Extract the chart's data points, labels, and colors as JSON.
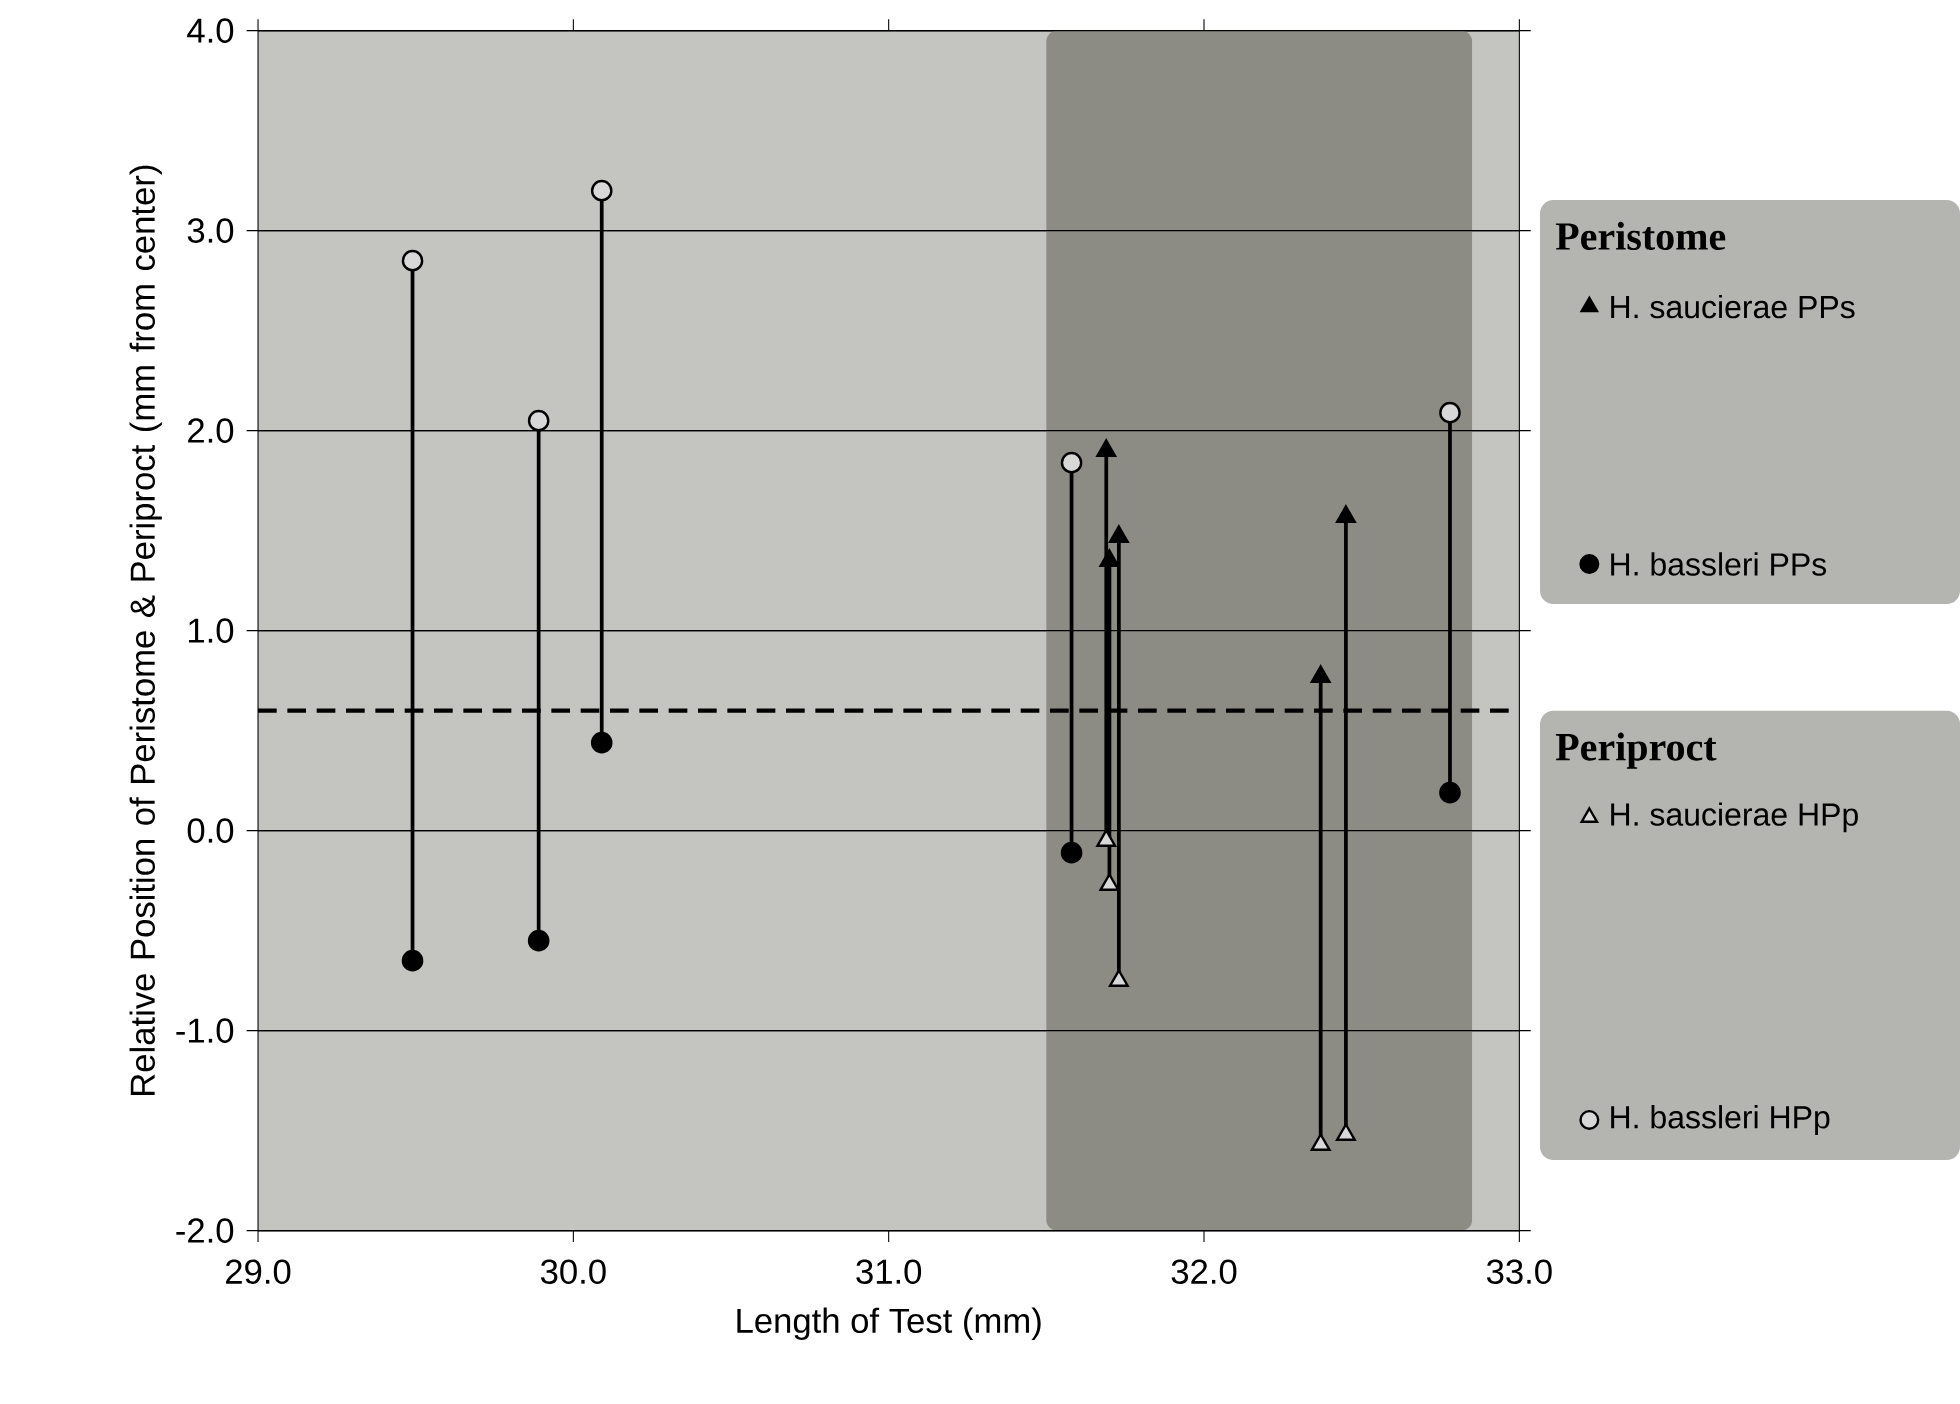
{
  "chart_data": {
    "type": "scatter",
    "xlabel": "Length of Test (mm)",
    "ylabel": "Relative Position of Peristome & Periproct (mm from center)",
    "xlim": [
      29,
      33
    ],
    "ylim": [
      -2,
      4
    ],
    "xticks": [
      {
        "value": 29,
        "label": "29.0"
      },
      {
        "value": 30,
        "label": "30.0"
      },
      {
        "value": 31,
        "label": "31.0"
      },
      {
        "value": 32,
        "label": "32.0"
      },
      {
        "value": 33,
        "label": "33.0"
      }
    ],
    "yticks": [
      {
        "value": -2,
        "label": "-2.0"
      },
      {
        "value": -1,
        "label": "-1.0"
      },
      {
        "value": 0,
        "label": "0.0"
      },
      {
        "value": 1,
        "label": "1.0"
      },
      {
        "value": 2,
        "label": "2.0"
      },
      {
        "value": 3,
        "label": "3.0"
      },
      {
        "value": 4,
        "label": "4.0"
      }
    ],
    "grid": "y",
    "legend": "right",
    "annotations": [
      "Peristome",
      "Periproct"
    ],
    "ref_lines": [
      {
        "axis": "y",
        "value": 0.6,
        "line_style": "dashed",
        "color": "#000000"
      }
    ],
    "bands": [
      {
        "axis": "x",
        "from": 31.5,
        "to": 32.85,
        "color": "#8c8c84"
      }
    ],
    "series": [
      {
        "name": "H. saucierae PPs",
        "marker": "triangle",
        "color": "#000000",
        "x": [
          31.69,
          31.7,
          31.73,
          32.37,
          32.45
        ],
        "values": [
          1.9,
          1.35,
          1.47,
          0.77,
          1.57
        ]
      },
      {
        "name": "H. bassleri PPs",
        "marker": "circle",
        "color": "#000000",
        "x": [
          29.49,
          29.89,
          30.09,
          31.58,
          32.78
        ],
        "values": [
          -0.65,
          -0.55,
          0.44,
          -0.11,
          0.19
        ]
      },
      {
        "name": "H. saucierae HPp",
        "marker": "triangle",
        "color": "#d8d8d8",
        "x": [
          31.69,
          31.7,
          31.73,
          32.37,
          32.45
        ],
        "values": [
          -0.05,
          -0.27,
          -0.75,
          -1.57,
          -1.52
        ]
      },
      {
        "name": "H. bassleri HPp",
        "marker": "circle",
        "color": "#d8d8d8",
        "x": [
          29.49,
          29.89,
          30.09,
          31.58,
          32.78
        ],
        "values": [
          2.85,
          2.05,
          3.2,
          1.84,
          2.09
        ]
      },
      {
        "type": "line",
        "marker": "none",
        "color": "#000000",
        "x": [
          29.49,
          29.49,
          null,
          29.89,
          29.89,
          null,
          30.09,
          30.09,
          null,
          31.58,
          31.58,
          null,
          32.78,
          32.78
        ],
        "values": [
          -0.65,
          2.85,
          null,
          -0.55,
          2.05,
          null,
          0.44,
          3.2,
          null,
          -0.11,
          1.84,
          null,
          0.19,
          2.09
        ]
      },
      {
        "type": "line",
        "marker": "none",
        "color": "#000000",
        "x": [
          31.69,
          31.69,
          null,
          31.7,
          31.7,
          null,
          31.73,
          31.73,
          null,
          32.37,
          32.37,
          null,
          32.45,
          32.45
        ],
        "values": [
          1.9,
          -0.05,
          null,
          1.35,
          -0.27,
          null,
          1.47,
          -0.75,
          null,
          0.77,
          -1.57,
          null,
          1.57,
          -1.52
        ]
      }
    ]
  }
}
